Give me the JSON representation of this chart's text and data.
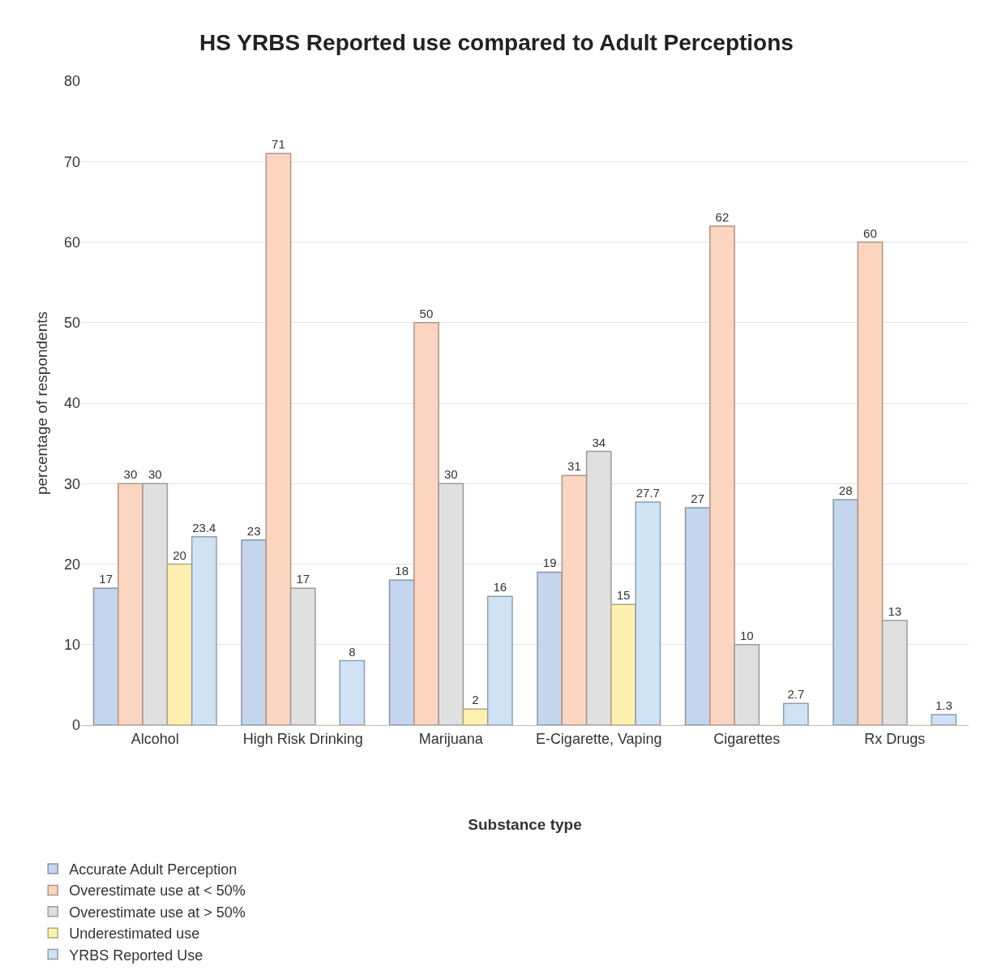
{
  "chart_data": {
    "type": "bar",
    "title": "HS YRBS Reported use compared to Adult Perceptions",
    "xlabel": "Substance type",
    "ylabel": "percentage of respondents",
    "categories": [
      "Alcohol",
      "High Risk Drinking",
      "Marijuana",
      "E-Cigarette, Vaping",
      "Cigarettes",
      "Rx Drugs"
    ],
    "series": [
      {
        "name": "Accurate Adult Perception",
        "color": "#c5d5ee",
        "values": [
          17,
          23,
          18,
          19,
          27,
          28
        ],
        "value_labels": [
          "17",
          "23",
          "18",
          "19",
          "27",
          "28"
        ]
      },
      {
        "name": "Overestimate use at < 50%",
        "color": "#fbd5c0",
        "values": [
          30,
          71,
          50,
          31,
          62,
          60
        ],
        "value_labels": [
          "30",
          "71",
          "50",
          "31",
          "62",
          "60"
        ]
      },
      {
        "name": "Overestimate use at > 50%",
        "color": "#e0e0e0",
        "values": [
          30,
          17,
          30,
          34,
          10,
          13
        ],
        "value_labels": [
          "30",
          "17",
          "30",
          "34",
          "10",
          "13"
        ]
      },
      {
        "name": "Underestimated use",
        "color": "#fff0b0",
        "values": [
          20,
          0,
          2,
          15,
          0,
          0
        ],
        "value_labels": [
          "20",
          null,
          "2",
          "15",
          null,
          null
        ]
      },
      {
        "name": "YRBS Reported Use",
        "color": "#cfe3f5",
        "values": [
          23.4,
          8,
          16,
          27.7,
          2.7,
          1.3
        ],
        "value_labels": [
          "23.4",
          "8",
          "16",
          "27.7",
          "2.7",
          "1.3"
        ]
      }
    ],
    "ylim": [
      0,
      80
    ],
    "yticks": [
      0,
      10,
      20,
      30,
      40,
      50,
      60,
      70,
      80
    ],
    "grid": "y",
    "legend": "bottom left"
  }
}
